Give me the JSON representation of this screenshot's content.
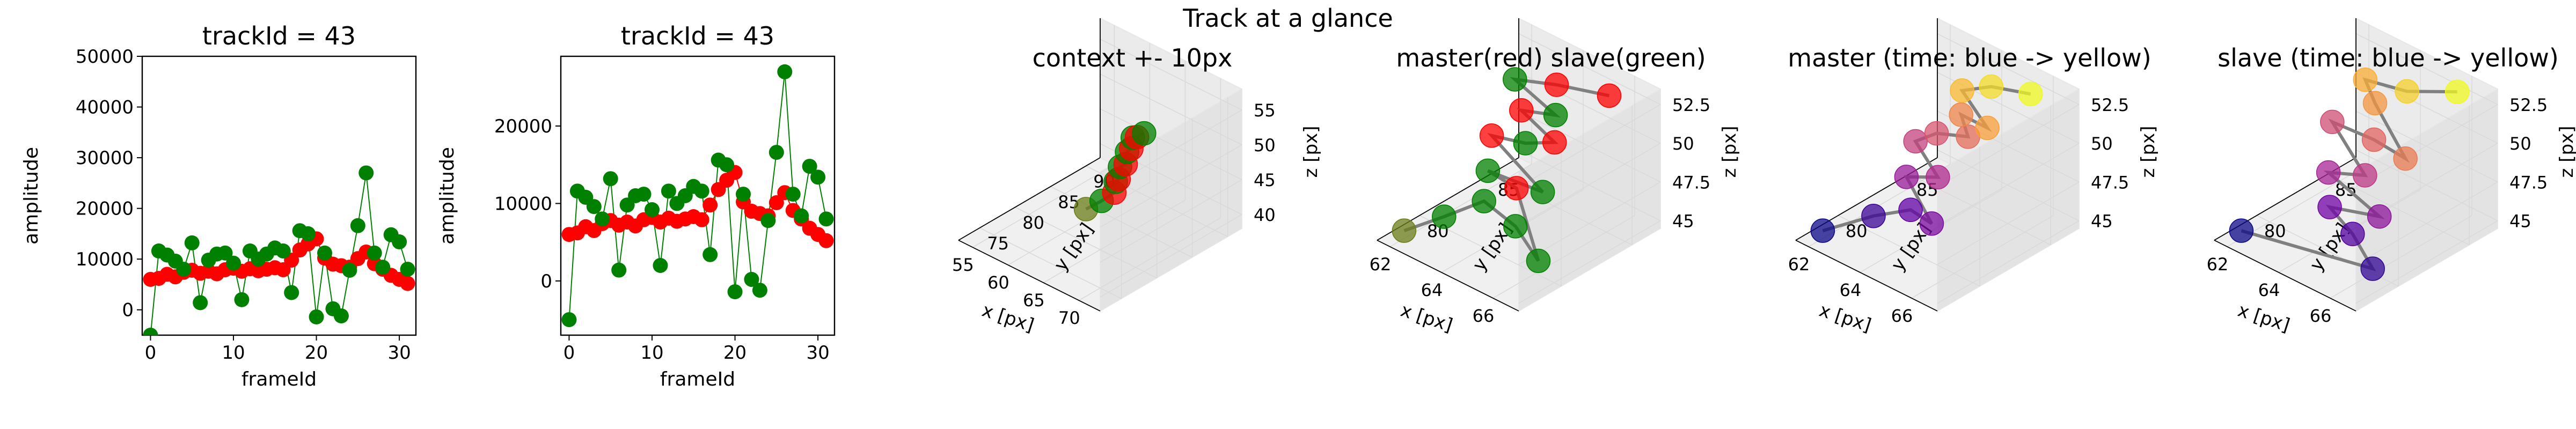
{
  "figure": {
    "suptitle": "Track at a glance"
  },
  "colors": {
    "master": "#ff0000",
    "slave": "#008000",
    "line_master": "#ff0000",
    "line_slave": "#008000",
    "traj": "#808080",
    "pane": "#f2f2f2",
    "grid": "#d9d9d9"
  },
  "chart_data": [
    {
      "type": "scatter",
      "title": "trackId = 43",
      "xlabel": "frameId",
      "ylabel": "amplitude",
      "xlim": [
        -1,
        32
      ],
      "ylim": [
        -5000,
        50000
      ],
      "xticks": [
        0,
        10,
        20,
        30
      ],
      "yticks": [
        0,
        10000,
        20000,
        30000,
        40000,
        50000
      ],
      "series": [
        {
          "color": "red",
          "x": [
            0,
            1,
            2,
            3,
            4,
            5,
            6,
            7,
            8,
            9,
            10,
            11,
            12,
            13,
            14,
            15,
            16,
            17,
            18,
            19,
            20,
            21,
            22,
            23,
            24,
            25,
            26,
            27,
            28,
            29,
            30,
            31
          ],
          "y": [
            6000,
            6200,
            7000,
            6500,
            7400,
            7800,
            7200,
            7600,
            7100,
            7900,
            8200,
            7600,
            8100,
            7700,
            8000,
            8300,
            7900,
            9800,
            11800,
            13000,
            14000,
            10200,
            9000,
            8700,
            8400,
            10100,
            11400,
            9100,
            8000,
            6800,
            6000,
            5200
          ]
        },
        {
          "color": "green",
          "x": [
            0,
            1,
            2,
            3,
            4,
            5,
            6,
            7,
            8,
            9,
            10,
            11,
            12,
            13,
            14,
            15,
            16,
            17,
            18,
            19,
            20,
            21,
            22,
            23,
            24,
            25,
            26,
            27,
            28,
            29,
            30,
            31
          ],
          "y": [
            -5000,
            11600,
            10800,
            9600,
            8000,
            13200,
            1400,
            9800,
            11000,
            11200,
            9200,
            2000,
            11600,
            10000,
            11000,
            12200,
            11600,
            3400,
            15600,
            15000,
            -1400,
            11200,
            200,
            -1200,
            7800,
            16600,
            27000,
            11200,
            8400,
            14800,
            13400,
            8000
          ]
        }
      ]
    },
    {
      "type": "scatter",
      "title": "trackId = 43",
      "xlabel": "frameId",
      "ylabel": "amplitude",
      "xlim": [
        -1,
        32
      ],
      "ylim": [
        -7000,
        29000
      ],
      "xticks": [
        0,
        10,
        20,
        30
      ],
      "yticks": [
        0,
        10000,
        20000
      ],
      "series": [
        {
          "color": "red",
          "x": [
            0,
            1,
            2,
            3,
            4,
            5,
            6,
            7,
            8,
            9,
            10,
            11,
            12,
            13,
            14,
            15,
            16,
            17,
            18,
            19,
            20,
            21,
            22,
            23,
            24,
            25,
            26,
            27,
            28,
            29,
            30,
            31
          ],
          "y": [
            6000,
            6200,
            7000,
            6500,
            7400,
            7800,
            7200,
            7600,
            7100,
            7900,
            8200,
            7600,
            8100,
            7700,
            8000,
            8300,
            7900,
            9800,
            11800,
            13000,
            14000,
            10200,
            9000,
            8700,
            8400,
            10100,
            11400,
            9100,
            8000,
            6800,
            6000,
            5200
          ]
        },
        {
          "color": "green",
          "x": [
            0,
            1,
            2,
            3,
            4,
            5,
            6,
            7,
            8,
            9,
            10,
            11,
            12,
            13,
            14,
            15,
            16,
            17,
            18,
            19,
            20,
            21,
            22,
            23,
            24,
            25,
            26,
            27,
            28,
            29,
            30,
            31
          ],
          "y": [
            -5000,
            11600,
            10800,
            9600,
            8000,
            13200,
            1400,
            9800,
            11000,
            11200,
            9200,
            2000,
            11600,
            10000,
            11000,
            12200,
            11600,
            3400,
            15600,
            15000,
            -1400,
            11200,
            200,
            -1200,
            7800,
            16600,
            27000,
            11200,
            8400,
            14800,
            13400,
            8000
          ]
        }
      ]
    },
    {
      "type": "scatter3d",
      "title": "context +- 10px",
      "xlabel": "x [px]",
      "ylabel": "y [px]",
      "zlabel": "z [px]",
      "xlim": [
        53,
        73
      ],
      "ylim": [
        72,
        92
      ],
      "zlim": [
        38,
        58
      ],
      "xticks": [
        55,
        60,
        65,
        70
      ],
      "yticks": [
        75,
        80,
        85,
        90
      ],
      "zticks": [
        40,
        45,
        50,
        55
      ],
      "points": [
        {
          "x": 63.0,
          "y": 80.0,
          "z": 42.8,
          "c": "olive"
        },
        {
          "x": 64.2,
          "y": 81.0,
          "z": 44.0,
          "c": "green"
        },
        {
          "x": 65.0,
          "y": 82.0,
          "z": 45.0,
          "c": "red"
        },
        {
          "x": 64.6,
          "y": 82.6,
          "z": 46.0,
          "c": "green"
        },
        {
          "x": 65.4,
          "y": 82.2,
          "z": 47.0,
          "c": "red"
        },
        {
          "x": 64.8,
          "y": 83.0,
          "z": 48.0,
          "c": "green"
        },
        {
          "x": 65.8,
          "y": 82.8,
          "z": 49.0,
          "c": "red"
        },
        {
          "x": 65.2,
          "y": 83.6,
          "z": 50.0,
          "c": "green"
        },
        {
          "x": 66.0,
          "y": 83.4,
          "z": 51.0,
          "c": "red"
        },
        {
          "x": 65.6,
          "y": 84.0,
          "z": 52.0,
          "c": "green"
        },
        {
          "x": 66.4,
          "y": 83.8,
          "z": 52.6,
          "c": "red"
        },
        {
          "x": 66.8,
          "y": 84.4,
          "z": 53.0,
          "c": "green"
        }
      ]
    },
    {
      "type": "scatter3d",
      "title": "master(red) slave(green)",
      "xlabel": "x [px]",
      "ylabel": "y [px]",
      "zlabel": "z [px]",
      "xlim": [
        61.5,
        67
      ],
      "ylim": [
        77,
        87
      ],
      "zlim": [
        44.5,
        53.5
      ],
      "xticks": [
        62,
        64,
        66
      ],
      "yticks": [
        80,
        85
      ],
      "zticks": [
        45.0,
        47.5,
        50.0,
        52.5
      ],
      "points": [
        {
          "x": 62.0,
          "y": 78.0,
          "z": 45.0,
          "c": "olive"
        },
        {
          "x": 63.0,
          "y": 79.0,
          "z": 46.2,
          "c": "green"
        },
        {
          "x": 64.0,
          "y": 80.0,
          "z": 47.5,
          "c": "green"
        },
        {
          "x": 65.0,
          "y": 80.4,
          "z": 46.5,
          "c": "green"
        },
        {
          "x": 66.0,
          "y": 80.2,
          "z": 45.2,
          "c": "green"
        },
        {
          "x": 64.6,
          "y": 81.2,
          "z": 48.2,
          "c": "red"
        },
        {
          "x": 63.6,
          "y": 81.0,
          "z": 48.6,
          "c": "green"
        },
        {
          "x": 65.4,
          "y": 81.6,
          "z": 48.4,
          "c": "green"
        },
        {
          "x": 63.2,
          "y": 82.0,
          "z": 50.0,
          "c": "red"
        },
        {
          "x": 64.4,
          "y": 82.2,
          "z": 50.4,
          "c": "green"
        },
        {
          "x": 65.2,
          "y": 82.8,
          "z": 50.8,
          "c": "red"
        },
        {
          "x": 63.8,
          "y": 83.0,
          "z": 51.6,
          "c": "red"
        },
        {
          "x": 64.8,
          "y": 83.6,
          "z": 51.8,
          "c": "green"
        },
        {
          "x": 63.0,
          "y": 84.0,
          "z": 52.4,
          "c": "green"
        },
        {
          "x": 64.4,
          "y": 84.4,
          "z": 53.0,
          "c": "red"
        },
        {
          "x": 66.0,
          "y": 85.2,
          "z": 53.2,
          "c": "red"
        }
      ]
    },
    {
      "type": "scatter3d",
      "title": "master (time: blue -> yellow)",
      "xlabel": "x [px]",
      "ylabel": "y [px]",
      "zlabel": "z [px]",
      "xlim": [
        61.5,
        67
      ],
      "ylim": [
        77,
        87
      ],
      "zlim": [
        44.5,
        53.5
      ],
      "xticks": [
        62,
        64,
        66
      ],
      "yticks": [
        80,
        85
      ],
      "zticks": [
        45.0,
        47.5,
        50.0,
        52.5
      ],
      "colormap": [
        "#0d0887",
        "#6a00a8",
        "#b12a90",
        "#e16462",
        "#fca636",
        "#f0f921"
      ],
      "points": [
        {
          "x": 62.0,
          "y": 78.0,
          "z": 45.0,
          "t": 0.0
        },
        {
          "x": 63.2,
          "y": 79.4,
          "z": 46.2,
          "t": 0.1
        },
        {
          "x": 64.2,
          "y": 80.2,
          "z": 47.0,
          "t": 0.18
        },
        {
          "x": 64.8,
          "y": 80.6,
          "z": 46.4,
          "t": 0.25
        },
        {
          "x": 63.6,
          "y": 81.0,
          "z": 48.2,
          "t": 0.33
        },
        {
          "x": 64.6,
          "y": 81.4,
          "z": 48.8,
          "t": 0.4
        },
        {
          "x": 63.4,
          "y": 82.0,
          "z": 49.8,
          "t": 0.48
        },
        {
          "x": 64.0,
          "y": 82.4,
          "z": 50.6,
          "t": 0.55
        },
        {
          "x": 65.0,
          "y": 82.8,
          "z": 51.0,
          "t": 0.63
        },
        {
          "x": 64.4,
          "y": 83.4,
          "z": 51.6,
          "t": 0.7
        },
        {
          "x": 65.2,
          "y": 83.8,
          "z": 51.2,
          "t": 0.78
        },
        {
          "x": 64.0,
          "y": 84.2,
          "z": 52.4,
          "t": 0.85
        },
        {
          "x": 64.8,
          "y": 84.8,
          "z": 53.0,
          "t": 0.93
        },
        {
          "x": 66.0,
          "y": 85.4,
          "z": 53.2,
          "t": 1.0
        }
      ]
    },
    {
      "type": "scatter3d",
      "title": "slave (time: blue -> yellow)",
      "xlabel": "x [px]",
      "ylabel": "y [px]",
      "zlabel": "z [px]",
      "xlim": [
        61.5,
        67
      ],
      "ylim": [
        77,
        87
      ],
      "zlim": [
        44.5,
        53.5
      ],
      "xticks": [
        62,
        64,
        66
      ],
      "yticks": [
        80,
        85
      ],
      "zticks": [
        45.0,
        47.5,
        50.0,
        52.5
      ],
      "colormap": [
        "#0d0887",
        "#6a00a8",
        "#b12a90",
        "#e16462",
        "#fca636",
        "#f0f921"
      ],
      "points": [
        {
          "x": 62.0,
          "y": 78.0,
          "z": 45.0,
          "t": 0.0
        },
        {
          "x": 66.0,
          "y": 80.0,
          "z": 44.8,
          "t": 0.08
        },
        {
          "x": 65.0,
          "y": 80.4,
          "z": 46.0,
          "t": 0.15
        },
        {
          "x": 64.0,
          "y": 80.6,
          "z": 46.8,
          "t": 0.22
        },
        {
          "x": 65.6,
          "y": 81.2,
          "z": 47.2,
          "t": 0.3
        },
        {
          "x": 63.4,
          "y": 81.6,
          "z": 48.0,
          "t": 0.37
        },
        {
          "x": 64.6,
          "y": 82.0,
          "z": 48.6,
          "t": 0.45
        },
        {
          "x": 63.0,
          "y": 82.6,
          "z": 50.4,
          "t": 0.52
        },
        {
          "x": 64.4,
          "y": 83.0,
          "z": 50.2,
          "t": 0.6
        },
        {
          "x": 65.4,
          "y": 83.4,
          "z": 49.6,
          "t": 0.67
        },
        {
          "x": 64.0,
          "y": 83.8,
          "z": 51.8,
          "t": 0.75
        },
        {
          "x": 63.4,
          "y": 84.2,
          "z": 52.6,
          "t": 0.82
        },
        {
          "x": 64.8,
          "y": 84.6,
          "z": 52.8,
          "t": 0.9
        },
        {
          "x": 66.2,
          "y": 85.6,
          "z": 53.4,
          "t": 1.0
        }
      ]
    }
  ]
}
